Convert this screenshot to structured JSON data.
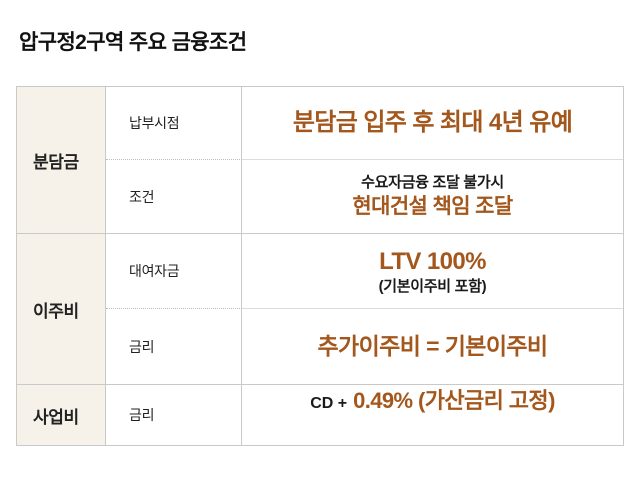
{
  "page": {
    "title": "압구정2구역 주요 금융조건"
  },
  "colors": {
    "accent": "#A3571C",
    "label_bg": "#F6F1E9",
    "border": "#C9C9C9",
    "text": "#1A1A1A"
  },
  "table": {
    "groups": [
      {
        "label": "분담금",
        "rows": [
          {
            "sub": "납부시점",
            "main": "분담금 입주 후 최대 4년 유예"
          },
          {
            "sub": "조건",
            "note": "수요자금융 조달 불가시",
            "main": "현대건설 책임 조달"
          }
        ]
      },
      {
        "label": "이주비",
        "rows": [
          {
            "sub": "대여자금",
            "main": "LTV 100%",
            "note": "(기본이주비 포함)"
          },
          {
            "sub": "금리",
            "main": "추가이주비 = 기본이주비"
          }
        ]
      },
      {
        "label": "사업비",
        "rows": [
          {
            "sub": "금리",
            "prefix": "CD +",
            "main": "0.49% (가산금리 고정)"
          }
        ]
      }
    ]
  }
}
